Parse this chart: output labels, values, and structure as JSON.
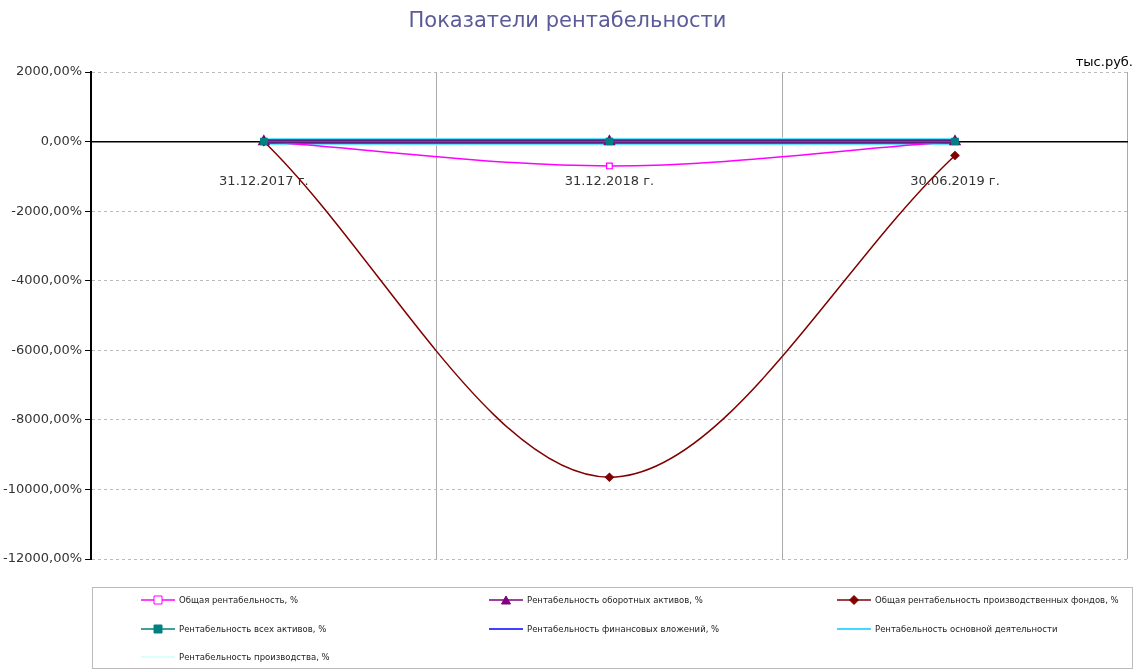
{
  "chart_data": {
    "type": "line",
    "title": "Показатели рентабельности",
    "annotations": [
      "тыс.руб."
    ],
    "categories": [
      "31.12.2017 г.",
      "31.12.2018 г.",
      "30.06.2019 г."
    ],
    "ylim": [
      -12000,
      2000
    ],
    "yticks": [
      {
        "value": 2000,
        "label": "2000,00%"
      },
      {
        "value": 0,
        "label": "0,00%"
      },
      {
        "value": -2000,
        "label": "-2000,00%"
      },
      {
        "value": -4000,
        "label": "-4000,00%"
      },
      {
        "value": -6000,
        "label": "-6000,00%"
      },
      {
        "value": -8000,
        "label": "-8000,00%"
      },
      {
        "value": -10000,
        "label": "-10000,00%"
      },
      {
        "value": -12000,
        "label": "-12000,00%"
      }
    ],
    "grid": true,
    "legend": "bottom",
    "series": [
      {
        "name": "Общая рентабельность, %",
        "color": "#ff00ff",
        "marker": "square",
        "values": [
          0,
          -700,
          0
        ]
      },
      {
        "name": "Рентабельность оборотных активов, %",
        "color": "#800080",
        "marker": "triangle",
        "values": [
          0,
          0,
          0
        ]
      },
      {
        "name": "Общая рентабельность производственных фондов, %",
        "color": "#800000",
        "marker": "diamond",
        "values": [
          0,
          -9650,
          -400
        ]
      },
      {
        "name": "Рентабельность всех активов, %",
        "color": "#008080",
        "marker": "square",
        "values": [
          0,
          0,
          0
        ]
      },
      {
        "name": "Рентабельность финансовых вложений, %",
        "color": "#0000ff",
        "marker": "none",
        "values": [
          0,
          0,
          0
        ]
      },
      {
        "name": "Рентабельность основной деятельности",
        "color": "#00ccff",
        "marker": "none",
        "values": [
          0,
          0,
          0
        ]
      },
      {
        "name": "Рентабельность производства, %",
        "color": "#ccffff",
        "marker": "none",
        "values": [
          0,
          0,
          0
        ]
      }
    ]
  }
}
